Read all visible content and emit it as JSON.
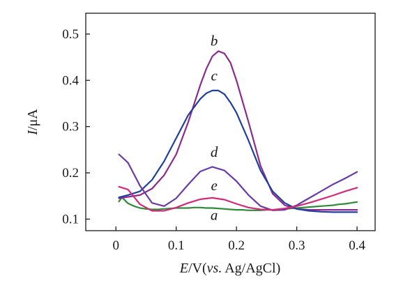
{
  "chart_data": {
    "type": "line",
    "xlabel": {
      "italic": "E",
      "text": "/V(",
      "vs": "vs.",
      "end": " Ag/AgCl)"
    },
    "ylabel": {
      "italic": "I",
      "text": "/μA"
    },
    "xlim": [
      -0.05,
      0.43
    ],
    "ylim": [
      0.075,
      0.545
    ],
    "x_ticks": [
      0,
      0.1,
      0.2,
      0.3,
      0.4
    ],
    "x_tick_labels": [
      "0",
      "0.1",
      "0.2",
      "0.3",
      "0.4"
    ],
    "y_ticks": [
      0.1,
      0.2,
      0.3,
      0.4,
      0.5
    ],
    "y_tick_labels": [
      "0.1",
      "0.2",
      "0.3",
      "0.4",
      "0.5"
    ],
    "grid": false,
    "legend": "none",
    "series": [
      {
        "name": "a",
        "color": "#2e8b3a",
        "label_at": [
          0.163,
          0.098
        ],
        "x": [
          0.005,
          0.01,
          0.02,
          0.03,
          0.04,
          0.05,
          0.06,
          0.07,
          0.08,
          0.09,
          0.1,
          0.11,
          0.12,
          0.13,
          0.14,
          0.15,
          0.16,
          0.17,
          0.18,
          0.19,
          0.2,
          0.21,
          0.22,
          0.23,
          0.24,
          0.25,
          0.26,
          0.27,
          0.28,
          0.29,
          0.3,
          0.31,
          0.32,
          0.33,
          0.34,
          0.35,
          0.36,
          0.37,
          0.38,
          0.39,
          0.4
        ],
        "y": [
          0.138,
          0.147,
          0.134,
          0.128,
          0.124,
          0.122,
          0.121,
          0.121,
          0.122,
          0.123,
          0.124,
          0.124,
          0.124,
          0.125,
          0.125,
          0.124,
          0.124,
          0.123,
          0.122,
          0.121,
          0.12,
          0.12,
          0.119,
          0.119,
          0.119,
          0.12,
          0.12,
          0.121,
          0.122,
          0.123,
          0.124,
          0.125,
          0.126,
          0.127,
          0.128,
          0.129,
          0.13,
          0.132,
          0.133,
          0.135,
          0.137
        ]
      },
      {
        "name": "b",
        "color": "#8b2a8c",
        "label_at": [
          0.163,
          0.475
        ],
        "x": [
          0.005,
          0.02,
          0.04,
          0.06,
          0.08,
          0.1,
          0.12,
          0.14,
          0.15,
          0.16,
          0.17,
          0.18,
          0.19,
          0.2,
          0.22,
          0.24,
          0.26,
          0.28,
          0.3,
          0.32,
          0.34,
          0.36,
          0.38,
          0.4
        ],
        "y": [
          0.145,
          0.148,
          0.152,
          0.166,
          0.195,
          0.24,
          0.31,
          0.39,
          0.425,
          0.452,
          0.463,
          0.458,
          0.438,
          0.4,
          0.31,
          0.215,
          0.155,
          0.13,
          0.122,
          0.12,
          0.12,
          0.12,
          0.12,
          0.12
        ]
      },
      {
        "name": "c",
        "color": "#1f3e9e",
        "label_at": [
          0.163,
          0.4
        ],
        "x": [
          0.005,
          0.02,
          0.04,
          0.06,
          0.08,
          0.1,
          0.12,
          0.14,
          0.15,
          0.16,
          0.17,
          0.18,
          0.19,
          0.2,
          0.22,
          0.24,
          0.26,
          0.28,
          0.3,
          0.32,
          0.34,
          0.36,
          0.38,
          0.4
        ],
        "y": [
          0.147,
          0.152,
          0.16,
          0.185,
          0.225,
          0.275,
          0.325,
          0.36,
          0.372,
          0.378,
          0.378,
          0.37,
          0.352,
          0.33,
          0.27,
          0.205,
          0.16,
          0.135,
          0.122,
          0.118,
          0.116,
          0.115,
          0.115,
          0.115
        ]
      },
      {
        "name": "d",
        "color": "#6a3aa8",
        "label_at": [
          0.163,
          0.235
        ],
        "x": [
          0.005,
          0.02,
          0.04,
          0.06,
          0.08,
          0.1,
          0.12,
          0.14,
          0.16,
          0.18,
          0.2,
          0.22,
          0.24,
          0.26,
          0.28,
          0.3,
          0.32,
          0.34,
          0.36,
          0.38,
          0.4
        ],
        "y": [
          0.24,
          0.222,
          0.172,
          0.135,
          0.128,
          0.145,
          0.175,
          0.203,
          0.213,
          0.205,
          0.182,
          0.152,
          0.128,
          0.119,
          0.12,
          0.13,
          0.145,
          0.16,
          0.175,
          0.188,
          0.202
        ]
      },
      {
        "name": "e",
        "color": "#d12a7a",
        "label_at": [
          0.163,
          0.162
        ],
        "x": [
          0.005,
          0.02,
          0.04,
          0.06,
          0.08,
          0.1,
          0.12,
          0.14,
          0.16,
          0.18,
          0.2,
          0.22,
          0.24,
          0.26,
          0.28,
          0.3,
          0.32,
          0.34,
          0.36,
          0.38,
          0.4
        ],
        "y": [
          0.17,
          0.164,
          0.132,
          0.118,
          0.118,
          0.125,
          0.135,
          0.143,
          0.146,
          0.142,
          0.133,
          0.125,
          0.121,
          0.12,
          0.123,
          0.128,
          0.135,
          0.143,
          0.151,
          0.16,
          0.168
        ]
      }
    ]
  }
}
